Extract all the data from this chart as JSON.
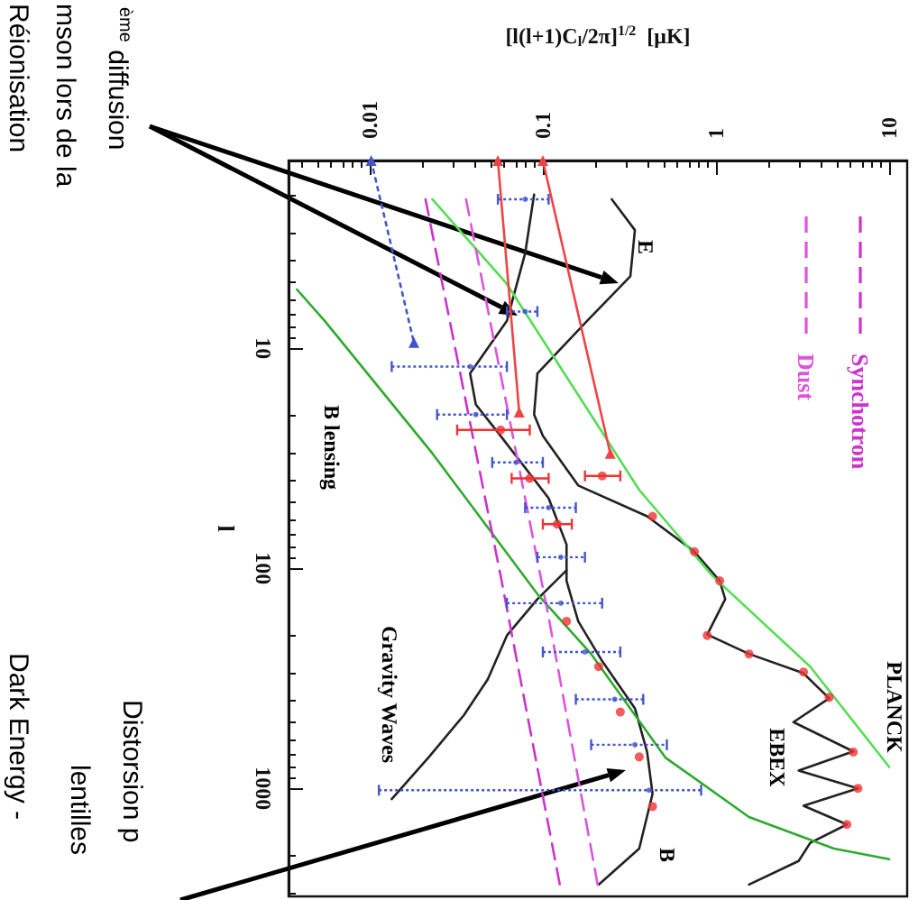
{
  "chart_data": {
    "type": "line",
    "xlabel": "[l(l+1)C$_{l}$/2π]$^{1/2}$  [μK]",
    "ylabel": "l",
    "log": "xy",
    "xlim": [
      0.0034,
      12.7
    ],
    "xticks": [
      0.01,
      0.1,
      1,
      10
    ],
    "ylim": [
      3100,
      1.4
    ],
    "yticks": [
      10,
      100,
      1000
    ],
    "grid": false,
    "legend": "top right",
    "marker": "none",
    "line_style": "solid",
    "series": [
      {
        "color": "#222222",
        "values": [
          2.1,
          2.9,
          4.7,
          7.5,
          13,
          20,
          25,
          42,
          58,
          84,
          114,
          138,
          200,
          245,
          300,
          390,
          500,
          680,
          830,
          1000,
          1200,
          1460,
          1770,
          2140,
          2740
        ],
        "x": [
          0.25,
          0.34,
          0.32,
          0.18,
          0.093,
          0.089,
          0.1,
          0.16,
          0.4,
          0.75,
          1.05,
          1.13,
          0.89,
          1.55,
          3.2,
          4.5,
          2.8,
          6.2,
          3.0,
          6.6,
          3.2,
          5.7,
          3.5,
          3.0,
          1.55
        ]
      },
      {
        "color": "#222222",
        "values": [
          2.0,
          3.7,
          7.5,
          13,
          18,
          25,
          48,
          78,
          114,
          174,
          264,
          433,
          684,
          1060,
          1880,
          2740
        ],
        "x": [
          0.089,
          0.079,
          0.062,
          0.038,
          0.041,
          0.057,
          0.108,
          0.137,
          0.137,
          0.16,
          0.22,
          0.34,
          0.4,
          0.43,
          0.36,
          0.21
        ]
      },
      {
        "color": "#222222",
        "values": [
          102,
          138,
          202,
          320,
          465,
          720,
          1120
        ],
        "x": [
          0.137,
          0.093,
          0.062,
          0.048,
          0.035,
          0.022,
          0.0134
        ]
      },
      {
        "color": "#2eaa2e",
        "values": [
          5.4,
          7.5,
          30,
          131,
          245,
          725,
          1350,
          1880,
          2100
        ],
        "x": [
          0.0038,
          0.0055,
          0.023,
          0.093,
          0.19,
          0.51,
          1.55,
          4.8,
          10
        ]
      },
      {
        "color": "#55dd55",
        "values": [
          2.1,
          5.1,
          44,
          108,
          280,
          800
        ],
        "x": [
          0.023,
          0.062,
          0.36,
          0.95,
          3.5,
          10
        ]
      },
      {
        "name": "Synchotron",
        "color": "#cc33cc",
        "line_style": "dashed",
        "values": [
          2.1,
          108,
          2900
        ],
        "x": [
          0.021,
          0.057,
          0.127
        ]
      },
      {
        "name": "Dust",
        "color": "#dd55dd",
        "line_style": "dashed",
        "values": [
          2.1,
          167,
          2900
        ],
        "x": [
          0.036,
          0.108,
          0.21
        ]
      },
      {
        "color": "#ee4444",
        "marker": "triangle",
        "values": [
          1.4,
          19.5
        ],
        "x": [
          0.055,
          0.073
        ]
      },
      {
        "color": "#ee4444",
        "marker": "triangle",
        "values": [
          1.4,
          30
        ],
        "x": [
          0.1,
          0.245
        ]
      },
      {
        "color": "#4455cc",
        "line_style": "dotted",
        "marker": "triangle",
        "values": [
          1.4,
          9.4
        ],
        "x": [
          0.0102,
          0.018
        ]
      },
      {
        "type": "scatter",
        "color": "#4455cc",
        "line_style": "dotted",
        "marker": "circle",
        "values": [
          2.1,
          6.8,
          12.1,
          20,
          33,
          53,
          89,
          144,
          240,
          394,
          634,
          1020
        ],
        "x": [
          0.079,
          0.079,
          0.038,
          0.041,
          0.07,
          0.108,
          0.127,
          0.127,
          0.175,
          0.26,
          0.34,
          0.41
        ],
        "xerrors": [
          [
            0.055,
            0.108
          ],
          [
            0.062,
            0.093
          ],
          [
            0.0134,
            0.062
          ],
          [
            0.0245,
            0.062
          ],
          [
            0.051,
            0.1
          ],
          [
            0.079,
            0.155
          ],
          [
            0.093,
            0.175
          ],
          [
            0.062,
            0.22
          ],
          [
            0.1,
            0.28
          ],
          [
            0.155,
            0.38
          ],
          [
            0.19,
            0.52
          ],
          [
            0.0113,
            0.82
          ]
        ]
      },
      {
        "type": "scatter",
        "color": "#ee3333",
        "marker": "circle",
        "values": [
          23.5,
          39,
          63,
          174,
          280,
          450,
          720,
          1210
        ],
        "x": [
          0.057,
          0.084,
          0.121,
          0.137,
          0.21,
          0.28,
          0.36,
          0.43
        ],
        "xerrors": [
          [
            0.032,
            0.084
          ],
          [
            0.066,
            0.108
          ],
          [
            0.1,
            0.147
          ],
          null,
          null,
          null,
          null,
          null
        ]
      },
      {
        "type": "scatter",
        "color": "#ee3333",
        "marker": "circle",
        "values": [
          38,
          58,
          84,
          114,
          202,
          245,
          296,
          386,
          684,
          1000,
          1460
        ],
        "x": [
          0.22,
          0.43,
          0.75,
          1.05,
          0.89,
          1.55,
          3.2,
          4.5,
          6.2,
          6.6,
          5.7
        ],
        "xerrors": [
          [
            0.175,
            0.28
          ],
          null,
          null,
          null,
          null,
          null,
          null,
          null,
          null,
          null,
          null
        ]
      }
    ],
    "annotations": [
      "E",
      "B",
      "B lensing",
      "Gravity Waves",
      "PLANCK",
      "EBEX",
      "$^{ème}$ diffusion",
      "mson lors de la",
      "Réionisation",
      "Distorsion p",
      "lentilles",
      "Dark Energy -"
    ]
  }
}
